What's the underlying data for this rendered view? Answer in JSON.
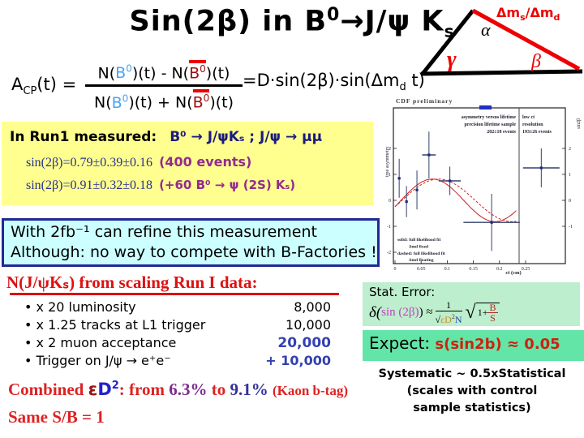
{
  "colors": {
    "accent_red": "#ee0000",
    "navy": "#1a1a80",
    "purple": "#922b8e",
    "light_blue_b0": "#49a4f5",
    "maroon_bbar": "#a01010",
    "blue_number": "#3340b0",
    "yellow_box_bg": "#ffff8f",
    "cyan_box_bg": "#ccffff",
    "cyan_box_border": "#222994",
    "stat_box_bg": "#bdeecd",
    "expect_box_bg": "#63e5a7",
    "heading_red": "#dd1111",
    "magenta_sin": "#c43fc4",
    "orange_eps": "#d68a1c",
    "curve_red": "#cc2222"
  },
  "title": {
    "prefix": "Sin(2β) in B",
    "sup": "0",
    "mid": "→J/ψ K",
    "sub": "s"
  },
  "triangle": {
    "alpha": "α",
    "gamma": "γ",
    "beta": "β",
    "hyp_a": "Δm",
    "hyp_a_sub": "s",
    "hyp_b": "/Δm",
    "hyp_b_sub": "d"
  },
  "acp_formula": {
    "lhs_base": "A",
    "lhs_sub": "CP",
    "lhs_tail": "(t) =",
    "num_a": "N(",
    "num_b0": "B",
    "num_b0_sup": "0",
    "num_mid": ")(t) - N(",
    "num_bbar": "B",
    "num_bbar_sup": "0",
    "num_tail": ")(t)",
    "den_a": "N(",
    "den_b0": "B",
    "den_b0_sup": "0",
    "den_mid": ")(t) + N(",
    "den_bbar": "B",
    "den_bbar_sup": "0",
    "den_tail": ")(t)",
    "rhs_a": "=D·sin(2β)·sin(Δm",
    "rhs_sub": "d",
    "rhs_b": " t)"
  },
  "run1_box": {
    "label": "In Run1 measured:",
    "decay": "B⁰ → J/ψKₛ ; J/ψ → μμ",
    "meas1": "sin(2β)=0.79±0.39±0.16",
    "meas1_note": "(400 events)",
    "meas2": "sin(2β)=0.91±0.32±0.18",
    "meas2_note": "(+60 B⁰ → ψ (2S) Kₛ)"
  },
  "refine_box": {
    "line1": "With 2fb⁻¹ can refine this measurement",
    "line2": "Although: no way to compete with B-Factories !"
  },
  "scaling": {
    "heading": "N(J/ψKₛ) from scaling Run I data:",
    "items": [
      {
        "bullet": "•",
        "label": "x 20 luminosity",
        "value": "8,000"
      },
      {
        "bullet": "•",
        "label": "x 1.25  tracks at L1 trigger",
        "value": "10,000"
      },
      {
        "bullet": "•",
        "label": "x 2 muon acceptance",
        "value": "20,000"
      },
      {
        "bullet": "•",
        "label": "Trigger on J/ψ → e⁺e⁻",
        "value": "+ 10,000"
      }
    ]
  },
  "combined": {
    "w1": "Combined ",
    "eps": "ε",
    "d": "D",
    "d_sup": "2",
    "w2": ": from ",
    "v1": "6.3%",
    "w3": " to ",
    "v2": "9.1%",
    "note": "(Kaon b-tag)"
  },
  "same_sb": "Same S/B = 1",
  "stat_error": {
    "label": "Stat. Error:",
    "lhs": "δ(",
    "sin_term": "sin (2β)",
    "approx": ") ≈",
    "num": "1",
    "rad1": "√",
    "eps_d": "εD",
    "eps_sup": "2",
    "n": "N",
    "rad2": "√",
    "one_plus": "1+",
    "b": "B",
    "s": "S"
  },
  "expect": {
    "label": "Expect: ",
    "value": "s(sin2b) ≈ 0.05"
  },
  "systematic": {
    "line1": "Systematic ~ 0.5xStatistical",
    "line2": "(scales with control",
    "line3": "sample statistics)"
  },
  "plot": {
    "header": "CDF preliminary",
    "ylabel": "true asymmetry",
    "ylabel_right": "sin2β",
    "xlabel": "ct (cm)",
    "ann1": [
      "asymmetry versus lifetime",
      "precision lifetime sample",
      "202±18 events"
    ],
    "ann2": [
      "low ct",
      "resolution",
      "193±26 events"
    ],
    "legend": [
      "solid: full likelihood fit",
      "Δmd fixed",
      "dashed: full likelihood fit",
      "Δmd floating"
    ],
    "chart_data": {
      "type": "scatter",
      "title": "CDF preliminary",
      "xlabel": "ct (cm)",
      "ylabel": "true asymmetry",
      "ylabel_right": "sin2β",
      "xlim": [
        0,
        0.33
      ],
      "ylim": [
        -2.4,
        3.6
      ],
      "xticks": [
        0,
        0.05,
        0.1,
        0.15,
        0.2,
        0.25
      ],
      "yticks": [
        2,
        1,
        0,
        -1,
        -2
      ],
      "yticks_right": [
        2,
        1,
        0,
        -1
      ],
      "divider_x": 0.238,
      "points": [
        {
          "ct": 0.008,
          "a": 0.85,
          "aerr": 0.75
        },
        {
          "ct": 0.022,
          "a": -0.05,
          "aerr": 0.6
        },
        {
          "ct": 0.042,
          "a": 0.4,
          "aerr": 0.75
        },
        {
          "ct": 0.065,
          "a": 1.75,
          "aerr": 0.9,
          "cterr": 0.013
        },
        {
          "ct": 0.105,
          "a": 0.75,
          "aerr": 0.55,
          "cterr": 0.021
        },
        {
          "ct": 0.185,
          "a": -0.85,
          "aerr": 1.1,
          "cterr": 0.054
        },
        {
          "ct": 0.28,
          "a": 1.25,
          "aerr": 0.75,
          "cterr": 0.035
        }
      ],
      "curves": [
        {
          "name": "full likelihood fit, Δmd fixed",
          "style": "solid",
          "amp": 0.82,
          "period": 0.24,
          "phase": -0.3
        },
        {
          "name": "full likelihood fit, Δmd floating",
          "style": "dashed",
          "amp": 0.82,
          "period": 0.28,
          "phase": -0.3
        }
      ]
    }
  }
}
